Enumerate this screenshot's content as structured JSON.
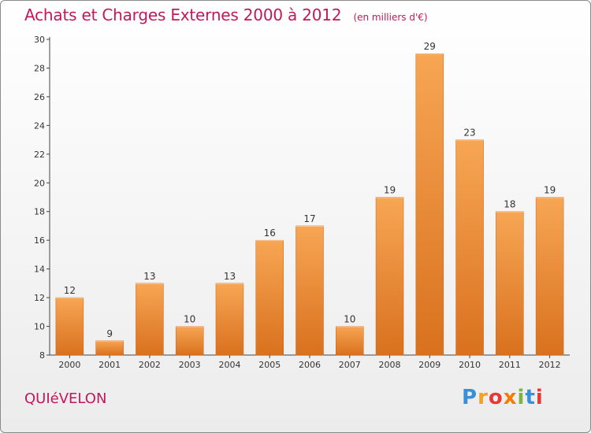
{
  "header": {
    "title": "Achats et Charges Externes 2000 à 2012",
    "unit": "(en milliers d'€)"
  },
  "footer": {
    "place": "QUIéVELON",
    "logo_letters": [
      "P",
      "r",
      "o",
      "x",
      "i",
      "t",
      "i"
    ],
    "logo_colors": [
      "#3a8fd9",
      "#f2a21b",
      "#e53935",
      "#f57c00",
      "#7cb342",
      "#3a8fd9",
      "#e53935"
    ]
  },
  "chart_data": {
    "type": "bar",
    "categories": [
      "2000",
      "2001",
      "2002",
      "2003",
      "2004",
      "2005",
      "2006",
      "2007",
      "2008",
      "2009",
      "2010",
      "2011",
      "2012"
    ],
    "values": [
      12,
      9,
      13,
      10,
      13,
      16,
      17,
      10,
      19,
      29,
      23,
      18,
      19
    ],
    "ylim": [
      8,
      30
    ],
    "yticks": [
      8,
      10,
      12,
      14,
      16,
      18,
      20,
      22,
      24,
      26,
      28,
      30
    ],
    "grid": false,
    "bar_color": "#f0912f",
    "xlabel": "",
    "ylabel": ""
  }
}
